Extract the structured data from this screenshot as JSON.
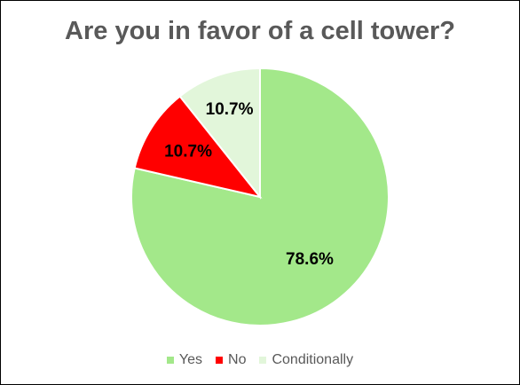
{
  "chart_data": {
    "type": "pie",
    "title": "Are you in favor of a cell tower?",
    "slices": [
      {
        "name": "Yes",
        "value": 78.6,
        "label": "78.6%",
        "color": "#a3e88a"
      },
      {
        "name": "No",
        "value": 10.7,
        "label": "10.7%",
        "color": "#ff0000"
      },
      {
        "name": "Conditionally",
        "value": 10.7,
        "label": "10.7%",
        "color": "#e2f6da"
      }
    ],
    "legend_position": "bottom",
    "slice_border_color": "#ffffff"
  }
}
